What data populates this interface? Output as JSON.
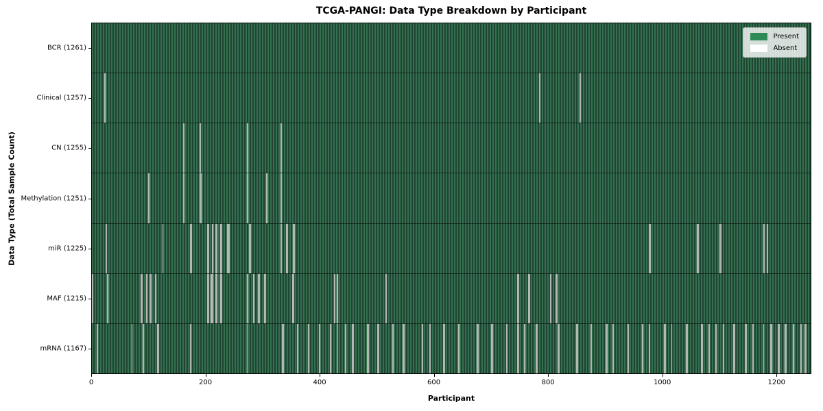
{
  "title": "TCGA-PANGI: Data Type Breakdown by Participant",
  "axes": {
    "x_label": "Participant",
    "y_label": "Data Type (Total Sample Count)",
    "x_ticks": [
      0,
      200,
      400,
      600,
      800,
      1000,
      1200
    ]
  },
  "legend": {
    "items": [
      {
        "label": "Present",
        "color": "#2e8b57"
      },
      {
        "label": "Absent",
        "color": "#ffffff"
      }
    ]
  },
  "colors": {
    "present_fill": "#2e8b57",
    "present_texture_light": "#35704f",
    "present_texture_dark": "#1f4433",
    "absent_stripe": "#b0b6b0",
    "legend_background": "rgba(255,255,255,0.8)",
    "plot_border": "#000000"
  },
  "chart_data": {
    "type": "heatmap",
    "title": "TCGA-PANGI: Data Type Breakdown by Participant",
    "xlabel": "Participant",
    "ylabel": "Data Type (Total Sample Count)",
    "x_ticks": [
      0,
      200,
      400,
      600,
      800,
      1000,
      1200
    ],
    "xlim": [
      0,
      1261
    ],
    "total_participants": 1261,
    "legend": [
      "Present",
      "Absent"
    ],
    "legend_position": "upper right",
    "rows": [
      {
        "data_type": "BCR",
        "label": "BCR (1261)",
        "present_count": 1261,
        "absent_count": 0,
        "absent_positions": []
      },
      {
        "data_type": "Clinical",
        "label": "Clinical (1257)",
        "present_count": 1257,
        "absent_count": 4,
        "absent_positions": [
          21,
          22,
          784,
          855
        ]
      },
      {
        "data_type": "CN",
        "label": "CN (1255)",
        "present_count": 1255,
        "absent_count": 6,
        "absent_positions": [
          160,
          189,
          271,
          272,
          330,
          331
        ]
      },
      {
        "data_type": "Methylation",
        "label": "Methylation (1251)",
        "present_count": 1251,
        "absent_count": 10,
        "absent_positions": [
          98,
          160,
          189,
          190,
          271,
          272,
          305,
          306,
          330,
          331
        ]
      },
      {
        "data_type": "miR",
        "label": "miR (1225)",
        "present_count": 1225,
        "absent_count": 36,
        "absent_positions": [
          24,
          123,
          172,
          173,
          202,
          203,
          210,
          211,
          216,
          217,
          218,
          225,
          226,
          237,
          238,
          239,
          275,
          276,
          277,
          330,
          331,
          340,
          341,
          352,
          353,
          354,
          977,
          978,
          1061,
          1062,
          1100,
          1101,
          1102,
          1177,
          1178,
          1184
        ]
      },
      {
        "data_type": "MAF",
        "label": "MAF (1215)",
        "present_count": 1215,
        "absent_count": 46,
        "absent_positions": [
          0,
          26,
          85,
          86,
          94,
          95,
          101,
          102,
          110,
          111,
          202,
          203,
          208,
          209,
          210,
          216,
          217,
          218,
          224,
          225,
          226,
          271,
          272,
          282,
          283,
          291,
          292,
          301,
          302,
          303,
          351,
          352,
          424,
          425,
          429,
          430,
          514,
          515,
          746,
          747,
          765,
          766,
          803,
          804,
          813,
          814
        ]
      },
      {
        "data_type": "mRNA",
        "label": "mRNA (1167)",
        "present_count": 1167,
        "absent_count": 94,
        "absent_positions": [
          8,
          69,
          89,
          114,
          115,
          172,
          271,
          333,
          334,
          359,
          360,
          378,
          379,
          398,
          417,
          418,
          430,
          443,
          444,
          455,
          456,
          457,
          482,
          483,
          500,
          501,
          502,
          526,
          527,
          545,
          546,
          578,
          579,
          591,
          592,
          616,
          617,
          642,
          643,
          675,
          676,
          700,
          701,
          726,
          727,
          746,
          747,
          758,
          778,
          779,
          817,
          818,
          849,
          850,
          874,
          875,
          901,
          902,
          913,
          939,
          940,
          964,
          965,
          977,
          1003,
          1004,
          1016,
          1042,
          1043,
          1068,
          1069,
          1081,
          1093,
          1094,
          1106,
          1107,
          1125,
          1126,
          1145,
          1146,
          1158,
          1177,
          1190,
          1191,
          1203,
          1204,
          1215,
          1216,
          1229,
          1230,
          1242,
          1243,
          1250,
          1251
        ]
      }
    ]
  }
}
